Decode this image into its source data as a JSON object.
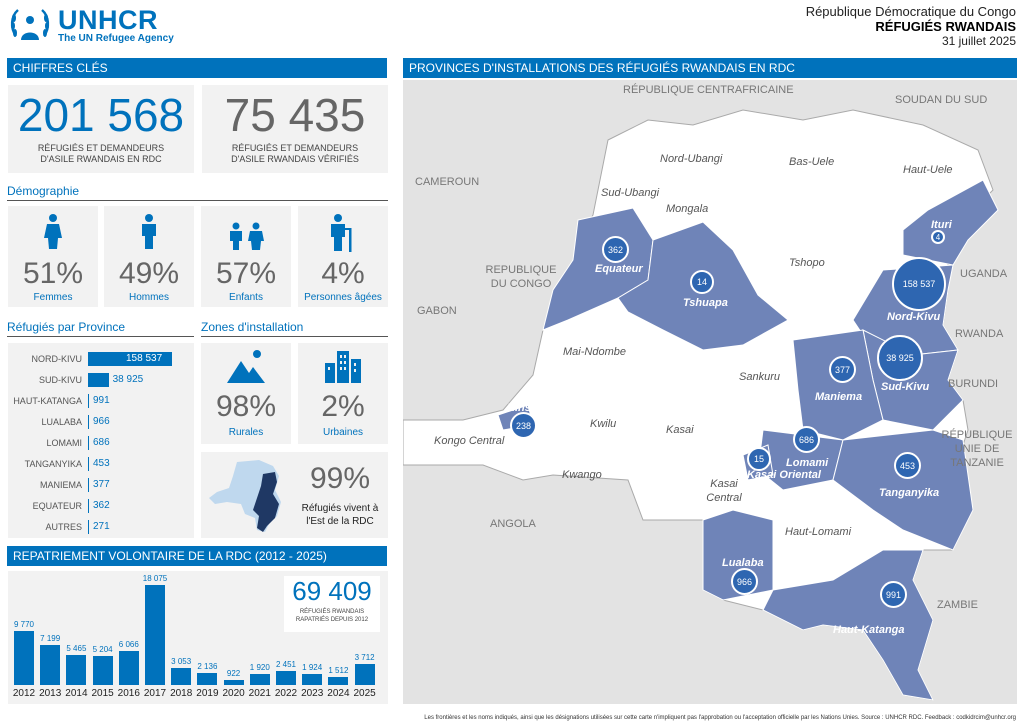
{
  "header": {
    "org_name": "UNHCR",
    "org_tagline": "The UN Refugee Agency",
    "country": "République Démocratique du Congo",
    "title": "RÉFUGIÉS RWANDAIS",
    "date": "31 juillet 2025"
  },
  "key_figures": {
    "section_title": "CHIFFRES CLÉS",
    "total_value": "201 568",
    "total_label": "RÉFUGIÉS ET DEMANDEURS D'ASILE RWANDAIS EN RDC",
    "verified_value": "75 435",
    "verified_label": "RÉFUGIÉS ET DEMANDEURS D'ASILE RWANDAIS VÉRIFIÉS"
  },
  "demography": {
    "title": "Démographie",
    "items": [
      {
        "pct": "51%",
        "label": "Femmes",
        "icon": "female-icon"
      },
      {
        "pct": "49%",
        "label": "Hommes",
        "icon": "male-icon"
      },
      {
        "pct": "57%",
        "label": "Enfants",
        "icon": "children-icon"
      },
      {
        "pct": "4%",
        "label": "Personnes âgées",
        "icon": "elderly-icon"
      }
    ]
  },
  "provinces": {
    "title": "Réfugiés par Province",
    "rows": [
      {
        "name": "NORD-KIVU",
        "value": "158 537",
        "n": 158537
      },
      {
        "name": "SUD-KIVU",
        "value": "38 925",
        "n": 38925
      },
      {
        "name": "HAUT-KATANGA",
        "value": "991",
        "n": 991
      },
      {
        "name": "LUALABA",
        "value": "966",
        "n": 966
      },
      {
        "name": "LOMAMI",
        "value": "686",
        "n": 686
      },
      {
        "name": "TANGANYIKA",
        "value": "453",
        "n": 453
      },
      {
        "name": "MANIEMA",
        "value": "377",
        "n": 377
      },
      {
        "name": "EQUATEUR",
        "value": "362",
        "n": 362
      },
      {
        "name": "AUTRES",
        "value": "271",
        "n": 271
      }
    ]
  },
  "settlement": {
    "title": "Zones d'installation",
    "rural_pct": "98%",
    "rural_label": "Rurales",
    "urban_pct": "2%",
    "urban_label": "Urbaines",
    "east_pct": "99%",
    "east_label": "Réfugiés vivent à l'Est de la RDC"
  },
  "repatriation": {
    "title": "REPATRIEMENT VOLONTAIRE DE LA RDC (2012 - 2025)",
    "total_value": "69 409",
    "total_label": "RÉFUGIÉS RWANDAIS RAPATRIÉS DEPUIS 2012"
  },
  "chart_data": {
    "type": "bar",
    "title": "REPATRIEMENT VOLONTAIRE DE LA RDC (2012 - 2025)",
    "categories": [
      "2012",
      "2013",
      "2014",
      "2015",
      "2016",
      "2017",
      "2018",
      "2019",
      "2020",
      "2021",
      "2022",
      "2023",
      "2024",
      "2025"
    ],
    "values": [
      9770,
      7199,
      5465,
      5204,
      6066,
      18075,
      3053,
      2136,
      922,
      1920,
      2451,
      1924,
      1512,
      3712
    ],
    "value_labels": [
      "9 770",
      "7 199",
      "5 465",
      "5 204",
      "6 066",
      "18 075",
      "3 053",
      "2 136",
      "922",
      "1 920",
      "2 451",
      "1 924",
      "1 512",
      "3 712"
    ],
    "ylim": [
      0,
      18075
    ]
  },
  "map": {
    "title": "PROVINCES D'INSTALLATIONS DES RÉFUGIÉS RWANDAIS EN RDC",
    "countries": [
      "RÉPUBLIQUE CENTRAFRICAINE",
      "SOUDAN DU SUD",
      "CAMEROUN",
      "REPUBLIQUE DU CONGO",
      "GABON",
      "UGANDA",
      "RWANDA",
      "BURUNDI",
      "RÉPUBLIQUE UNIE DE TANZANIE",
      "ANGOLA",
      "ZAMBIE"
    ],
    "provinces_plain": [
      "Nord-Ubangi",
      "Bas-Uele",
      "Haut-Uele",
      "Sud-Ubangi",
      "Mongala",
      "Tshopo",
      "Mai-Ndombe",
      "Sankuru",
      "Kwilu",
      "Kasai",
      "Kongo Central",
      "Kwango",
      "Kasai Central",
      "Haut-Lomami"
    ],
    "bubbles": [
      {
        "province": "Equateur",
        "value": "362"
      },
      {
        "province": "Tshuapa",
        "value": "14"
      },
      {
        "province": "Ituri",
        "value": "4"
      },
      {
        "province": "Nord-Kivu",
        "value": "158 537"
      },
      {
        "province": "Sud-Kivu",
        "value": "38 925"
      },
      {
        "province": "Maniema",
        "value": "377"
      },
      {
        "province": "Kinshasa",
        "value": "238"
      },
      {
        "province": "Lomami",
        "value": "686"
      },
      {
        "province": "Kasai Oriental",
        "value": "15"
      },
      {
        "province": "Tanganyika",
        "value": "453"
      },
      {
        "province": "Lualaba",
        "value": "966"
      },
      {
        "province": "Haut-Katanga",
        "value": "991"
      }
    ]
  },
  "footer": "Les frontières et les noms indiqués, ainsi que les désignations utilisées sur cette carte n'impliquent pas l'approbation ou l'acceptation officielle par les Nations Unies. Source : UNHCR RDC. Feedback : codkidrcim@unhcr.org",
  "colors": {
    "brand": "#0072BC",
    "map_highlight": "#6F84B8",
    "bubble": "#2E66B1"
  }
}
